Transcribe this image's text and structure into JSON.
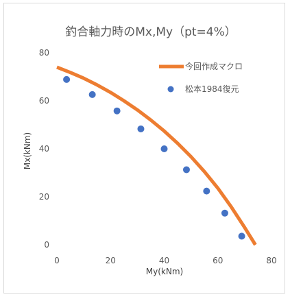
{
  "chart_data": {
    "type": "scatter",
    "title": "釣合軸力時のMx,My（pt=4%）",
    "xlabel": "My(kNm)",
    "ylabel": "Mx(kNm)",
    "xlim": [
      0,
      80
    ],
    "ylim": [
      0,
      80
    ],
    "xticks": [
      0,
      20,
      40,
      60,
      80
    ],
    "yticks": [
      0,
      20,
      40,
      60,
      80
    ],
    "grid": false,
    "legend_position": "top-right",
    "series": [
      {
        "name": "今回作成マクロ",
        "style": "line",
        "color": "#ED7D31",
        "x": [
          0,
          5,
          10,
          15,
          20,
          25,
          30,
          35,
          40,
          45,
          50,
          55,
          60,
          65,
          70,
          74
        ],
        "y": [
          74,
          71.8,
          69.4,
          66.6,
          63.5,
          60.0,
          56.2,
          52.0,
          47.4,
          42.3,
          36.7,
          30.5,
          23.6,
          15.8,
          7.2,
          0
        ]
      },
      {
        "name": "松本1984復元",
        "style": "marker",
        "color": "#4472C4",
        "x": [
          3.6,
          13.2,
          22.4,
          31.3,
          40.0,
          48.3,
          55.8,
          62.6,
          68.9
        ],
        "y": [
          68.9,
          62.6,
          55.8,
          48.3,
          40.0,
          31.3,
          22.4,
          13.2,
          3.6
        ]
      }
    ]
  }
}
